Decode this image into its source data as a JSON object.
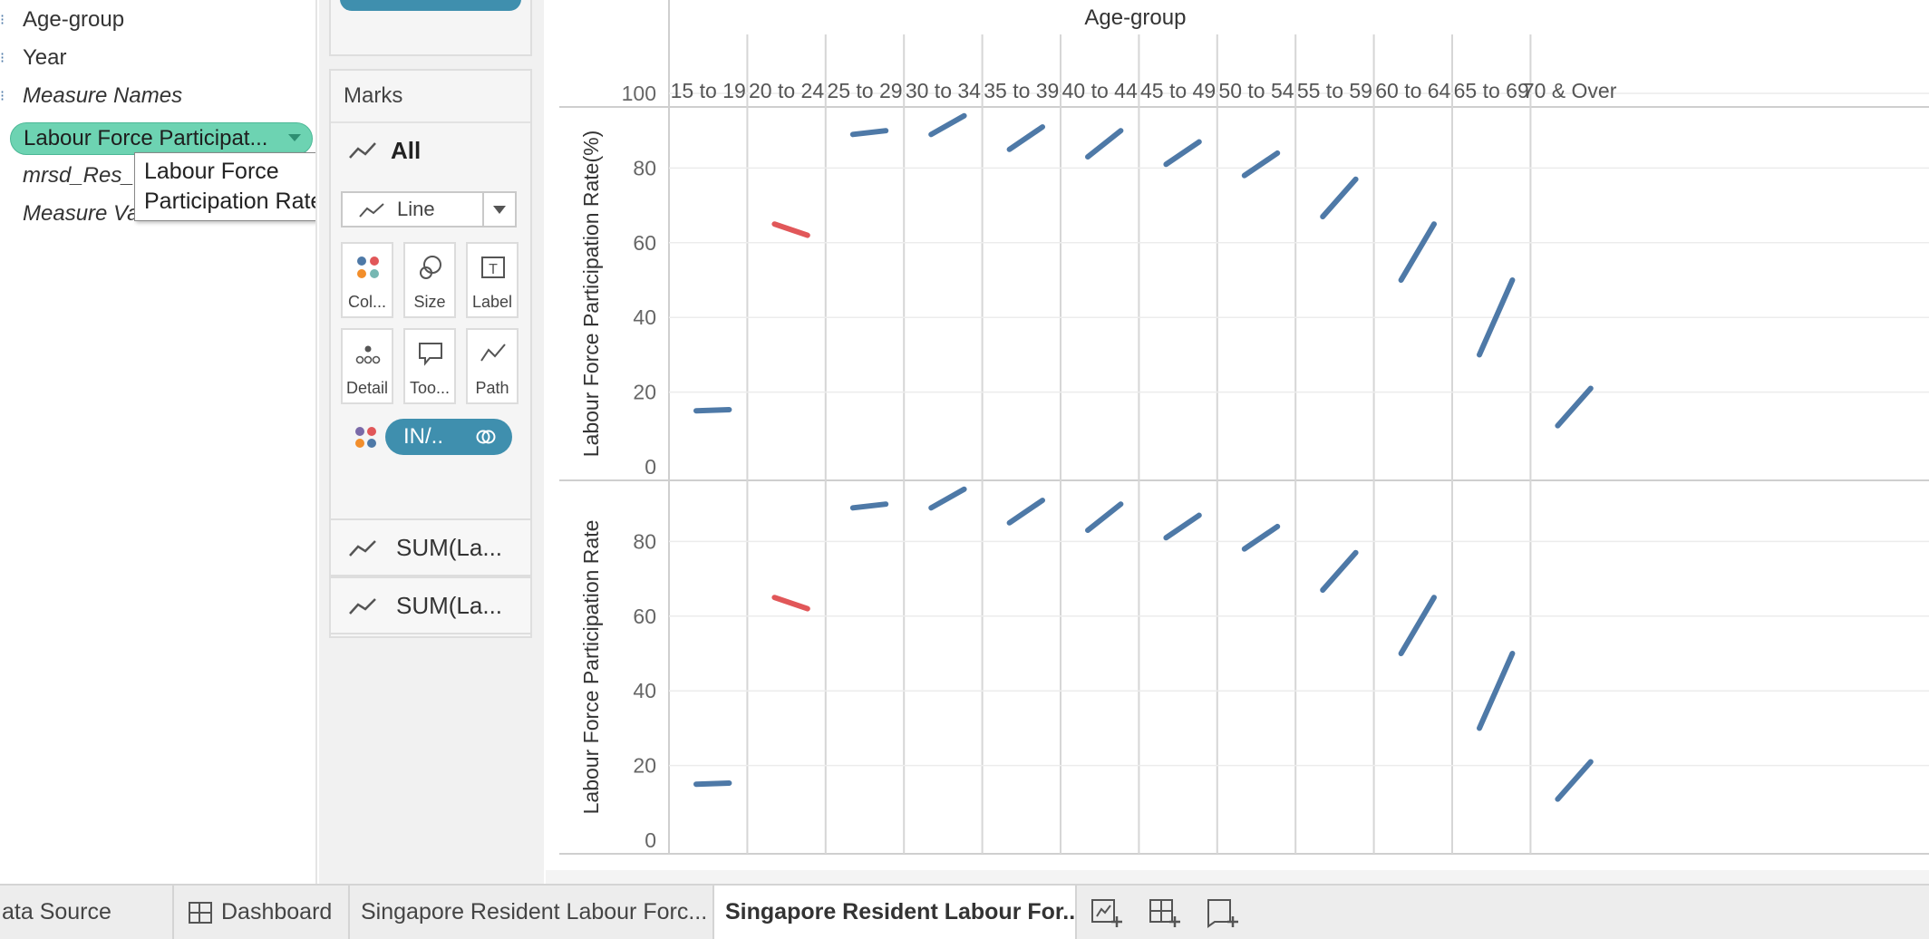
{
  "data_pane": {
    "fields": [
      {
        "name": "Age-group",
        "italic": false
      },
      {
        "name": "Year",
        "italic": false
      },
      {
        "name": "Measure Names",
        "italic": true
      },
      {
        "name": "mrsd_Res_",
        "italic": true
      },
      {
        "name": "Measure Values",
        "italic": true
      }
    ],
    "dragged_pill": "Labour Force Participat...",
    "tooltip_line1": "Labour Force",
    "tooltip_line2": "Participation Rate"
  },
  "marks": {
    "title": "Marks",
    "all_label": "All",
    "mark_type": "Line",
    "buttons": [
      "Col...",
      "Size",
      "Label",
      "Detail",
      "Too...",
      "Path"
    ],
    "color_pill": "IN/..",
    "sum_cards": [
      "SUM(La...",
      "SUM(La..."
    ]
  },
  "colors": {
    "blue_series": "#4e79a7",
    "red_series": "#e15759",
    "green_pill": "#6dd3b2",
    "blue_pill": "#3f8fae"
  },
  "chart_data": {
    "type": "line",
    "column_header": "Age-group",
    "categories": [
      "15 to 19",
      "20 to 24",
      "25 to 29",
      "30 to 34",
      "35 to 39",
      "40 to 44",
      "45 to 49",
      "50 to 54",
      "55 to 59",
      "60 to 64",
      "65 to 69",
      "70 & Over"
    ],
    "panes": [
      {
        "ylabel": "Labour Force Participation Rate(%)",
        "yticks": [
          0,
          20,
          40,
          60,
          80,
          100
        ],
        "ylim": [
          0,
          100
        ]
      },
      {
        "ylabel": "Labour Force Participation Rate",
        "yticks": [
          0,
          20,
          40,
          60,
          80
        ],
        "ylim": [
          0,
          96
        ]
      }
    ],
    "series": [
      {
        "values_start": [
          15,
          65,
          89,
          89,
          85,
          83,
          81,
          78,
          67,
          50,
          30,
          11
        ],
        "values_end": [
          15.3,
          62,
          90,
          94,
          91,
          90,
          87,
          84,
          77,
          65,
          50,
          21
        ]
      }
    ],
    "trend_colors": [
      "blue",
      "red",
      "blue",
      "blue",
      "blue",
      "blue",
      "blue",
      "blue",
      "blue",
      "blue",
      "blue",
      "blue"
    ],
    "grid": true
  },
  "tabs": [
    {
      "label": "ata Source"
    },
    {
      "label": "Dashboard"
    },
    {
      "label": "Singapore Resident Labour Forc..."
    },
    {
      "label": "Singapore Resident Labour For..."
    }
  ]
}
